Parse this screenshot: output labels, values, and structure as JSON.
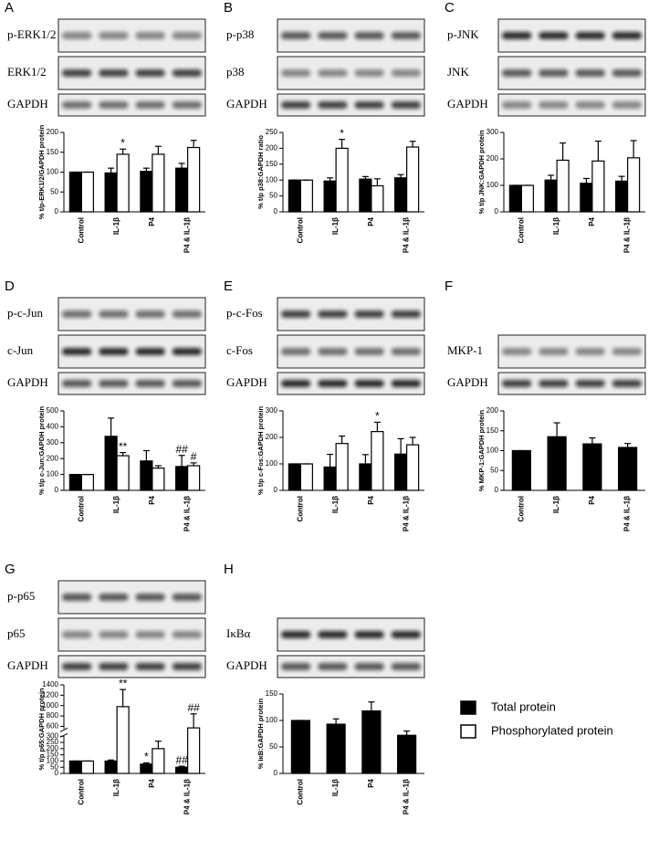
{
  "legend": [
    {
      "name": "Total protein",
      "color": "#000000"
    },
    {
      "name": "Phosphorylated protein",
      "color": "#ffffff"
    }
  ],
  "chart_data": [
    {
      "type": "bar",
      "panel": "A",
      "blots": [
        "p-ERK1/2",
        "ERK1/2",
        "GAPDH"
      ],
      "ylabel": "% t/p-ERK1/2/GAPDH protein",
      "categories": [
        "Control",
        "IL-1β",
        "P4",
        "P4 & IL-1β"
      ],
      "ylim": [
        0,
        200
      ],
      "yticks": [
        0,
        50,
        100,
        150,
        200
      ],
      "series": [
        {
          "values": [
            100,
            98,
            102,
            110
          ],
          "errors": [
            0,
            12,
            8,
            12
          ],
          "annotations": [
            null,
            null,
            null,
            null
          ]
        },
        {
          "values": [
            100,
            145,
            145,
            162
          ],
          "errors": [
            0,
            13,
            20,
            18
          ],
          "annotations": [
            null,
            "*",
            null,
            null
          ]
        }
      ]
    },
    {
      "type": "bar",
      "panel": "B",
      "blots": [
        "p-p38",
        "p38",
        "GAPDH"
      ],
      "ylabel": "% t/p p38:GAPDH ratio",
      "categories": [
        "Control",
        "IL-1β",
        "P4",
        "P4 & IL-1β"
      ],
      "ylim": [
        0,
        250
      ],
      "yticks": [
        0,
        50,
        100,
        150,
        200,
        250
      ],
      "series": [
        {
          "values": [
            100,
            97,
            103,
            107
          ],
          "errors": [
            0,
            10,
            8,
            10
          ],
          "annotations": [
            null,
            null,
            null,
            null
          ]
        },
        {
          "values": [
            100,
            200,
            82,
            204
          ],
          "errors": [
            0,
            28,
            22,
            18
          ],
          "annotations": [
            null,
            "*",
            null,
            null
          ]
        }
      ]
    },
    {
      "type": "bar",
      "panel": "C",
      "blots": [
        "p-JNK",
        "JNK",
        "GAPDH"
      ],
      "ylabel": "% t/p JNK:GAPDH protein",
      "categories": [
        "Control",
        "IL-1β",
        "P4",
        "P4 & IL-1β"
      ],
      "ylim": [
        0,
        300
      ],
      "yticks": [
        0,
        100,
        200,
        300
      ],
      "series": [
        {
          "values": [
            100,
            120,
            108,
            116
          ],
          "errors": [
            0,
            18,
            18,
            18
          ],
          "annotations": [
            null,
            null,
            null,
            null
          ]
        },
        {
          "values": [
            100,
            195,
            192,
            204
          ],
          "errors": [
            0,
            65,
            75,
            65
          ],
          "annotations": [
            null,
            null,
            null,
            null
          ]
        }
      ]
    },
    {
      "type": "bar",
      "panel": "D",
      "blots": [
        "p-c-Jun",
        "c-Jun",
        "GAPDH"
      ],
      "ylabel": "% t/p c-Jun:GAPDH protein",
      "categories": [
        "Control",
        "IL-1β",
        "P4",
        "P4 & IL-1β"
      ],
      "ylim": [
        0,
        500
      ],
      "yticks": [
        0,
        100,
        200,
        300,
        400,
        500
      ],
      "series": [
        {
          "values": [
            100,
            340,
            185,
            150
          ],
          "errors": [
            0,
            115,
            65,
            70
          ],
          "annotations": [
            null,
            null,
            null,
            "##"
          ]
        },
        {
          "values": [
            100,
            218,
            140,
            155
          ],
          "errors": [
            0,
            20,
            15,
            18
          ],
          "annotations": [
            null,
            "**",
            null,
            "#"
          ]
        }
      ]
    },
    {
      "type": "bar",
      "panel": "E",
      "blots": [
        "p-c-Fos",
        "c-Fos",
        "GAPDH"
      ],
      "ylabel": "% t/p c-Fos:GAPDH protein",
      "categories": [
        "Control",
        "IL-1β",
        "P4",
        "P4 & IL-1β"
      ],
      "ylim": [
        0,
        300
      ],
      "yticks": [
        0,
        100,
        200,
        300
      ],
      "series": [
        {
          "values": [
            100,
            88,
            100,
            137
          ],
          "errors": [
            0,
            48,
            35,
            58
          ],
          "annotations": [
            null,
            null,
            null,
            null
          ]
        },
        {
          "values": [
            100,
            177,
            222,
            172
          ],
          "errors": [
            0,
            28,
            35,
            28
          ],
          "annotations": [
            null,
            null,
            "*",
            null
          ]
        }
      ]
    },
    {
      "type": "bar",
      "panel": "F",
      "blots": [
        "MKP-1",
        "GAPDH"
      ],
      "ylabel": "% MKP-1:GAPDH protein",
      "categories": [
        "Control",
        "IL-1β",
        "P4",
        "P4 & IL-1β"
      ],
      "ylim": [
        0,
        200
      ],
      "yticks": [
        0,
        50,
        100,
        150,
        200
      ],
      "series": [
        {
          "values": [
            100,
            135,
            117,
            108
          ],
          "errors": [
            0,
            35,
            15,
            10
          ],
          "annotations": [
            null,
            null,
            null,
            null
          ]
        }
      ]
    },
    {
      "type": "bar",
      "panel": "G",
      "blots": [
        "p-p65",
        "p65",
        "GAPDH"
      ],
      "ylabel": "% t/p p65:GAPDH protein",
      "categories": [
        "Control",
        "IL-1β",
        "P4",
        "P4 & IL-1β"
      ],
      "ylim": [
        0,
        300
      ],
      "yticks": [
        0,
        50,
        100,
        150,
        200,
        250,
        300
      ],
      "axis_break": {
        "ylim": [
          550,
          1400
        ],
        "yticks": [
          600,
          800,
          1000,
          1200,
          1400
        ]
      },
      "series": [
        {
          "values": [
            100,
            100,
            75,
            50
          ],
          "errors": [
            0,
            8,
            10,
            8
          ],
          "annotations": [
            null,
            null,
            "*",
            "##"
          ]
        },
        {
          "values": [
            100,
            980,
            200,
            570
          ],
          "errors": [
            0,
            330,
            60,
            270
          ],
          "annotations": [
            null,
            "**",
            null,
            "##"
          ]
        }
      ]
    },
    {
      "type": "bar",
      "panel": "H",
      "blots": [
        "IκBα",
        "GAPDH"
      ],
      "ylabel": "% IκB:GAPDH protein",
      "categories": [
        "Control",
        "IL-1β",
        "P4",
        "P4 & IL-1β"
      ],
      "ylim": [
        0,
        150
      ],
      "yticks": [
        0,
        50,
        100,
        150
      ],
      "series": [
        {
          "values": [
            100,
            93,
            118,
            72
          ],
          "errors": [
            0,
            10,
            17,
            8
          ],
          "annotations": [
            null,
            null,
            null,
            null
          ]
        }
      ]
    }
  ]
}
